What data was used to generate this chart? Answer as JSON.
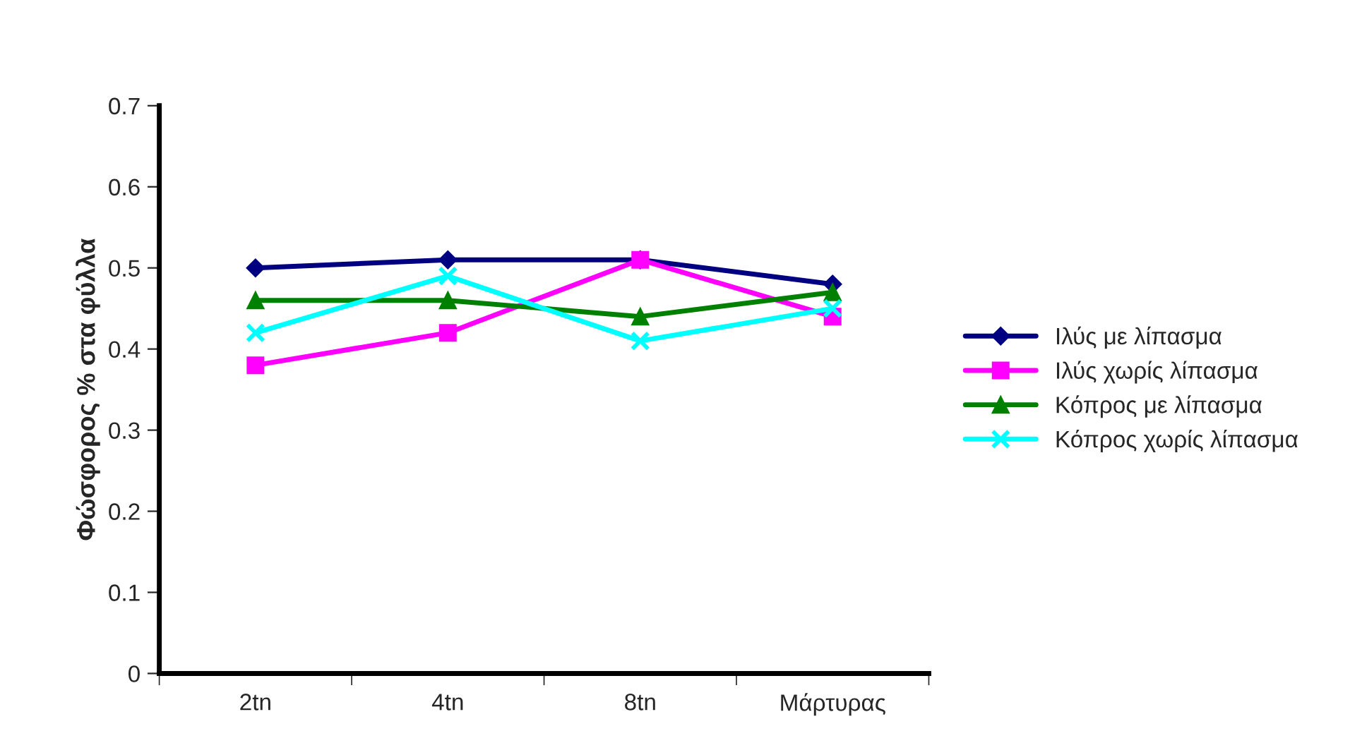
{
  "chart_data": {
    "type": "line",
    "ylabel": "Φώσφορος % στα φύλλα",
    "categories": [
      "2tn",
      "4tn",
      "8tn",
      "Μάρτυρας"
    ],
    "series": [
      {
        "name": "Ιλύς με λίπασμα",
        "color": "#000080",
        "marker": "diamond",
        "values": [
          0.5,
          0.51,
          0.51,
          0.48
        ]
      },
      {
        "name": "Ιλύς χωρίς λίπασμα",
        "color": "#ff00ff",
        "marker": "square",
        "values": [
          0.38,
          0.42,
          0.51,
          0.44
        ]
      },
      {
        "name": "Κόπρος με λίπασμα",
        "color": "#008000",
        "marker": "triangle",
        "values": [
          0.46,
          0.46,
          0.44,
          0.47
        ]
      },
      {
        "name": "Κόπρος χωρίς λίπασμα",
        "color": "#00ffff",
        "marker": "cross",
        "values": [
          0.42,
          0.49,
          0.41,
          0.45
        ]
      }
    ],
    "ylim": [
      0,
      0.7
    ],
    "yticks": [
      0,
      0.1,
      0.2,
      0.3,
      0.4,
      0.5,
      0.6,
      0.7
    ],
    "grid": false,
    "legend": "right",
    "line_style": "solid"
  }
}
